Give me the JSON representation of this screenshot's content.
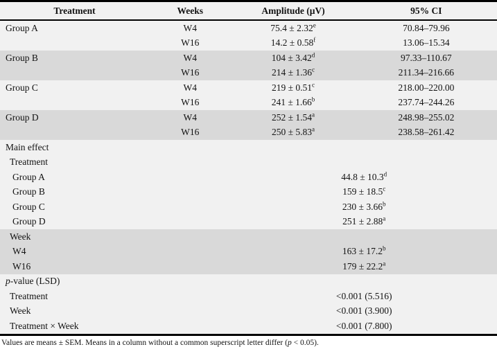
{
  "colors": {
    "row_light": "#f1f1f1",
    "row_dark": "#d9d9d9",
    "border": "#000000"
  },
  "header": {
    "columns": [
      "Treatment",
      "Weeks",
      "Amplitude (μV)",
      "95% CI"
    ]
  },
  "rows": [
    {
      "label": "Group A",
      "indent": 0,
      "week": "W4",
      "amp": "75.4 ± 2.32",
      "sup": "e",
      "ci": "70.84–79.96",
      "shade": "light",
      "span": false
    },
    {
      "label": "",
      "indent": 0,
      "week": "W16",
      "amp": "14.2 ± 0.58",
      "sup": "f",
      "ci": "13.06–15.34",
      "shade": "light",
      "span": false
    },
    {
      "label": "Group B",
      "indent": 0,
      "week": "W4",
      "amp": "104 ± 3.42",
      "sup": "d",
      "ci": "97.33–110.67",
      "shade": "dark",
      "span": false
    },
    {
      "label": "",
      "indent": 0,
      "week": "W16",
      "amp": "214 ± 1.36",
      "sup": "c",
      "ci": "211.34–216.66",
      "shade": "dark",
      "span": false
    },
    {
      "label": "Group C",
      "indent": 0,
      "week": "W4",
      "amp": "219 ± 0.51",
      "sup": "c",
      "ci": "218.00–220.00",
      "shade": "light",
      "span": false
    },
    {
      "label": "",
      "indent": 0,
      "week": "W16",
      "amp": "241 ± 1.66",
      "sup": "b",
      "ci": "237.74–244.26",
      "shade": "light",
      "span": false
    },
    {
      "label": "Group D",
      "indent": 0,
      "week": "W4",
      "amp": "252 ± 1.54",
      "sup": "a",
      "ci": "248.98–255.02",
      "shade": "dark",
      "span": false
    },
    {
      "label": "",
      "indent": 0,
      "week": "W16",
      "amp": "250 ± 5.83",
      "sup": "a",
      "ci": "238.58–261.42",
      "shade": "dark",
      "span": false
    },
    {
      "label": "Main effect",
      "indent": 0,
      "amp": "",
      "sup": "",
      "shade": "light",
      "span": true
    },
    {
      "label": "Treatment",
      "indent": 1,
      "amp": "",
      "sup": "",
      "shade": "light",
      "span": true
    },
    {
      "label": "Group A",
      "indent": 2,
      "amp": "44.8 ± 10.3",
      "sup": "d",
      "shade": "light",
      "span": true
    },
    {
      "label": "Group B",
      "indent": 2,
      "amp": "159 ± 18.5",
      "sup": "c",
      "shade": "light",
      "span": true
    },
    {
      "label": "Group C",
      "indent": 2,
      "amp": "230 ± 3.66",
      "sup": "b",
      "shade": "light",
      "span": true
    },
    {
      "label": "Group D",
      "indent": 2,
      "amp": "251 ± 2.88",
      "sup": "a",
      "shade": "light",
      "span": true
    },
    {
      "label": "Week",
      "indent": 1,
      "amp": "",
      "sup": "",
      "shade": "dark",
      "span": true
    },
    {
      "label": "W4",
      "indent": 2,
      "amp": "163 ± 17.2",
      "sup": "b",
      "shade": "dark",
      "span": true
    },
    {
      "label": "W16",
      "indent": 2,
      "amp": "179 ± 22.2",
      "sup": "a",
      "shade": "dark",
      "span": true
    },
    {
      "label": "-value (LSD)",
      "label_italic": "p",
      "indent": 0,
      "amp": "",
      "sup": "",
      "shade": "light",
      "span": true
    },
    {
      "label": "Treatment",
      "indent": 1,
      "amp": "<0.001 (5.516)",
      "sup": "",
      "shade": "light",
      "span": true
    },
    {
      "label": "Week",
      "indent": 1,
      "amp": "<0.001 (3.900)",
      "sup": "",
      "shade": "light",
      "span": true
    },
    {
      "label": "Treatment × Week",
      "indent": 1,
      "amp": "<0.001 (7.800)",
      "sup": "",
      "shade": "light",
      "span": true
    }
  ],
  "footnote": {
    "pre": "Values are means ± SEM. Means in a column without a common superscript letter differ (",
    "italic": "p",
    "post": " < 0.05)."
  }
}
